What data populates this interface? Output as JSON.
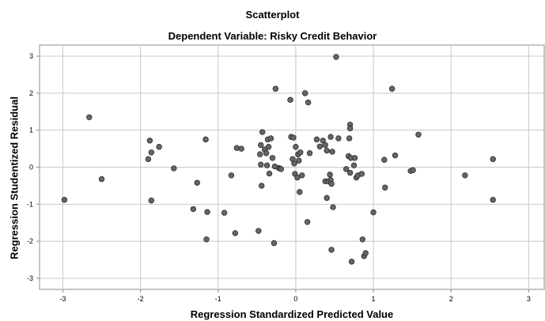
{
  "chart_data": {
    "type": "scatter",
    "title": "Scatterplot",
    "subtitle": "Dependent Variable: Risky Credit Behavior",
    "xlabel": "Regression Standardized Predicted Value",
    "ylabel": "Regression Studentized Residual",
    "xlim": [
      -3.3,
      3.2
    ],
    "ylim": [
      -3.3,
      3.3
    ],
    "xticks": [
      -3,
      -2,
      -1,
      0,
      1,
      2,
      3
    ],
    "yticks": [
      -3,
      -2,
      -1,
      0,
      1,
      2,
      3
    ],
    "grid": true,
    "marker_color": "#666666",
    "points": [
      [
        -2.98,
        -0.88
      ],
      [
        -2.66,
        1.35
      ],
      [
        -2.5,
        -0.32
      ],
      [
        -1.9,
        0.22
      ],
      [
        -1.88,
        0.72
      ],
      [
        -1.86,
        0.4
      ],
      [
        -1.86,
        -0.9
      ],
      [
        -1.76,
        0.55
      ],
      [
        -1.57,
        -0.03
      ],
      [
        -1.32,
        -1.13
      ],
      [
        -1.27,
        -0.42
      ],
      [
        -1.16,
        0.75
      ],
      [
        -1.14,
        -1.21
      ],
      [
        -1.15,
        -1.95
      ],
      [
        -0.92,
        -1.23
      ],
      [
        -0.83,
        -0.22
      ],
      [
        -0.78,
        -1.78
      ],
      [
        -0.76,
        0.52
      ],
      [
        -0.7,
        0.5
      ],
      [
        -0.48,
        -1.72
      ],
      [
        -0.46,
        0.35
      ],
      [
        -0.45,
        0.6
      ],
      [
        -0.45,
        0.07
      ],
      [
        -0.44,
        -0.5
      ],
      [
        -0.43,
        0.95
      ],
      [
        -0.4,
        0.48
      ],
      [
        -0.38,
        0.38
      ],
      [
        -0.37,
        0.05
      ],
      [
        -0.36,
        0.75
      ],
      [
        -0.35,
        0.55
      ],
      [
        -0.34,
        -0.17
      ],
      [
        -0.32,
        0.78
      ],
      [
        -0.3,
        0.25
      ],
      [
        -0.28,
        -2.05
      ],
      [
        -0.27,
        0.02
      ],
      [
        -0.26,
        2.12
      ],
      [
        -0.22,
        -0.02
      ],
      [
        -0.2,
        -0.04
      ],
      [
        -0.19,
        -0.05
      ],
      [
        -0.07,
        1.82
      ],
      [
        -0.06,
        0.82
      ],
      [
        -0.04,
        0.22
      ],
      [
        -0.03,
        0.8
      ],
      [
        -0.02,
        0.1
      ],
      [
        -0.01,
        -0.18
      ],
      [
        0.0,
        0.55
      ],
      [
        0.02,
        -0.28
      ],
      [
        0.03,
        0.35
      ],
      [
        0.04,
        0.18
      ],
      [
        0.05,
        -0.67
      ],
      [
        0.06,
        0.4
      ],
      [
        0.08,
        -0.22
      ],
      [
        0.12,
        2.0
      ],
      [
        0.15,
        -1.48
      ],
      [
        0.16,
        1.75
      ],
      [
        0.18,
        0.38
      ],
      [
        0.27,
        0.75
      ],
      [
        0.31,
        0.56
      ],
      [
        0.35,
        0.72
      ],
      [
        0.38,
        0.6
      ],
      [
        0.38,
        -0.38
      ],
      [
        0.4,
        0.45
      ],
      [
        0.4,
        -0.83
      ],
      [
        0.42,
        -0.38
      ],
      [
        0.44,
        -0.2
      ],
      [
        0.45,
        -0.35
      ],
      [
        0.45,
        0.82
      ],
      [
        0.46,
        -0.45
      ],
      [
        0.46,
        -2.23
      ],
      [
        0.47,
        0.42
      ],
      [
        0.48,
        -1.08
      ],
      [
        0.52,
        2.98
      ],
      [
        0.55,
        0.78
      ],
      [
        0.65,
        -0.05
      ],
      [
        0.68,
        0.3
      ],
      [
        0.69,
        0.78
      ],
      [
        0.7,
        1.15
      ],
      [
        0.7,
        1.05
      ],
      [
        0.7,
        -0.15
      ],
      [
        0.71,
        0.25
      ],
      [
        0.72,
        -2.55
      ],
      [
        0.75,
        0.05
      ],
      [
        0.76,
        0.25
      ],
      [
        0.78,
        -0.28
      ],
      [
        0.8,
        -0.22
      ],
      [
        0.85,
        -0.18
      ],
      [
        0.86,
        -1.95
      ],
      [
        0.88,
        -2.4
      ],
      [
        0.9,
        -2.32
      ],
      [
        1.0,
        -1.22
      ],
      [
        1.14,
        0.2
      ],
      [
        1.15,
        -0.55
      ],
      [
        1.24,
        2.12
      ],
      [
        1.28,
        0.32
      ],
      [
        1.48,
        -0.1
      ],
      [
        1.51,
        -0.08
      ],
      [
        1.58,
        0.88
      ],
      [
        2.18,
        -0.22
      ],
      [
        2.54,
        0.22
      ],
      [
        2.54,
        -0.88
      ]
    ]
  }
}
